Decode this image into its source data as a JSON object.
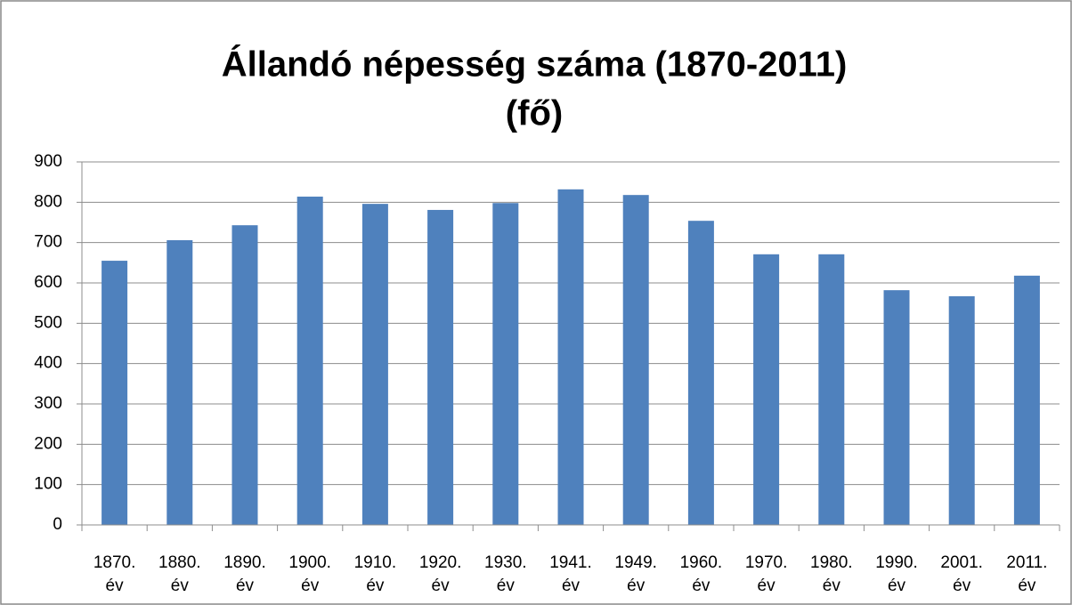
{
  "chart_data": {
    "type": "bar",
    "title": "Állandó népesség száma (1870-2011)",
    "subtitle": "(fő)",
    "categories": [
      "1870. év",
      "1880. év",
      "1890. év",
      "1900. év",
      "1910. év",
      "1920. év",
      "1930. év",
      "1941. év",
      "1949. év",
      "1960. év",
      "1970. év",
      "1980. év",
      "1990. év",
      "2001. év",
      "2011. év"
    ],
    "values": [
      655,
      706,
      743,
      814,
      796,
      781,
      798,
      832,
      818,
      754,
      671,
      671,
      582,
      567,
      618
    ],
    "color": "#4f81bd",
    "ylim": [
      0,
      900
    ],
    "yticks": [
      0,
      100,
      200,
      300,
      400,
      500,
      600,
      700,
      800,
      900
    ],
    "grid": true
  }
}
